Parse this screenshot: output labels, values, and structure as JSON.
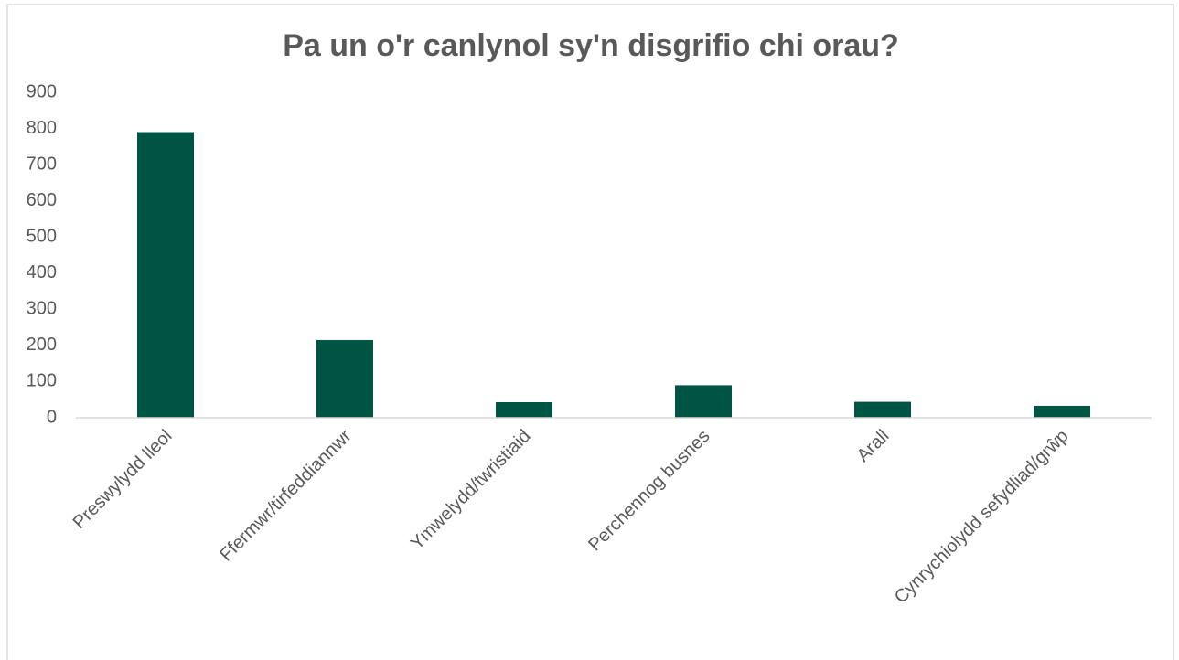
{
  "chart_data": {
    "type": "bar",
    "title": "Pa un o'r canlynol sy'n disgrifio chi orau?",
    "categories": [
      "Preswylydd lleol",
      "Ffermwr/tirfeddiannwr",
      "Ymwelydd/twristiaid",
      "Perchennog busnes",
      "Arall",
      "Cynrychiolydd sefydliad/grŵp"
    ],
    "values": [
      790,
      215,
      43,
      90,
      44,
      33
    ],
    "color": "#005444",
    "ylim": [
      0,
      900
    ],
    "yticks": [
      0,
      100,
      200,
      300,
      400,
      500,
      600,
      700,
      800,
      900
    ],
    "grid": false
  }
}
